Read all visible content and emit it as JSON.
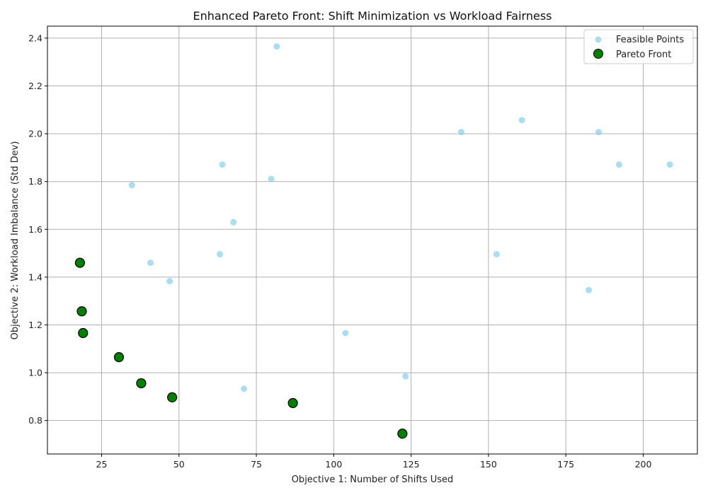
{
  "chart_data": {
    "type": "scatter",
    "title": "Enhanced Pareto Front: Shift Minimization vs Workload Fairness",
    "xlabel": "Objective 1: Number of Shifts Used",
    "ylabel": "Objective 2: Workload Imbalance (Std Dev)",
    "xlim": [
      7.5,
      217.5
    ],
    "ylim": [
      0.66,
      2.45
    ],
    "xticks": [
      25,
      50,
      75,
      100,
      125,
      150,
      175,
      200
    ],
    "yticks": [
      0.8,
      1.0,
      1.2,
      1.4,
      1.6,
      1.8,
      2.0,
      2.2,
      2.4
    ],
    "grid": true,
    "legend_position": "top-right",
    "series": [
      {
        "name": "Feasible Points",
        "color": "#87ceeb",
        "points": [
          {
            "x": 34.8,
            "y": 1.785
          },
          {
            "x": 40.8,
            "y": 1.46
          },
          {
            "x": 47.0,
            "y": 1.383
          },
          {
            "x": 63.2,
            "y": 1.496
          },
          {
            "x": 64.0,
            "y": 1.871
          },
          {
            "x": 67.6,
            "y": 1.63
          },
          {
            "x": 71.0,
            "y": 0.933
          },
          {
            "x": 79.8,
            "y": 1.811
          },
          {
            "x": 81.6,
            "y": 2.365
          },
          {
            "x": 103.8,
            "y": 1.166
          },
          {
            "x": 123.2,
            "y": 0.985
          },
          {
            "x": 141.2,
            "y": 2.007
          },
          {
            "x": 152.6,
            "y": 1.496
          },
          {
            "x": 160.8,
            "y": 2.057
          },
          {
            "x": 182.4,
            "y": 1.346
          },
          {
            "x": 185.6,
            "y": 2.007
          },
          {
            "x": 192.2,
            "y": 1.871
          },
          {
            "x": 208.6,
            "y": 1.871
          }
        ]
      },
      {
        "name": "Pareto Front",
        "color": "#008000",
        "points": [
          {
            "x": 18.0,
            "y": 1.46
          },
          {
            "x": 18.6,
            "y": 1.257
          },
          {
            "x": 19.0,
            "y": 1.166
          },
          {
            "x": 30.6,
            "y": 1.065
          },
          {
            "x": 37.8,
            "y": 0.956
          },
          {
            "x": 47.8,
            "y": 0.897
          },
          {
            "x": 86.8,
            "y": 0.873
          },
          {
            "x": 122.2,
            "y": 0.745
          }
        ]
      }
    ]
  }
}
